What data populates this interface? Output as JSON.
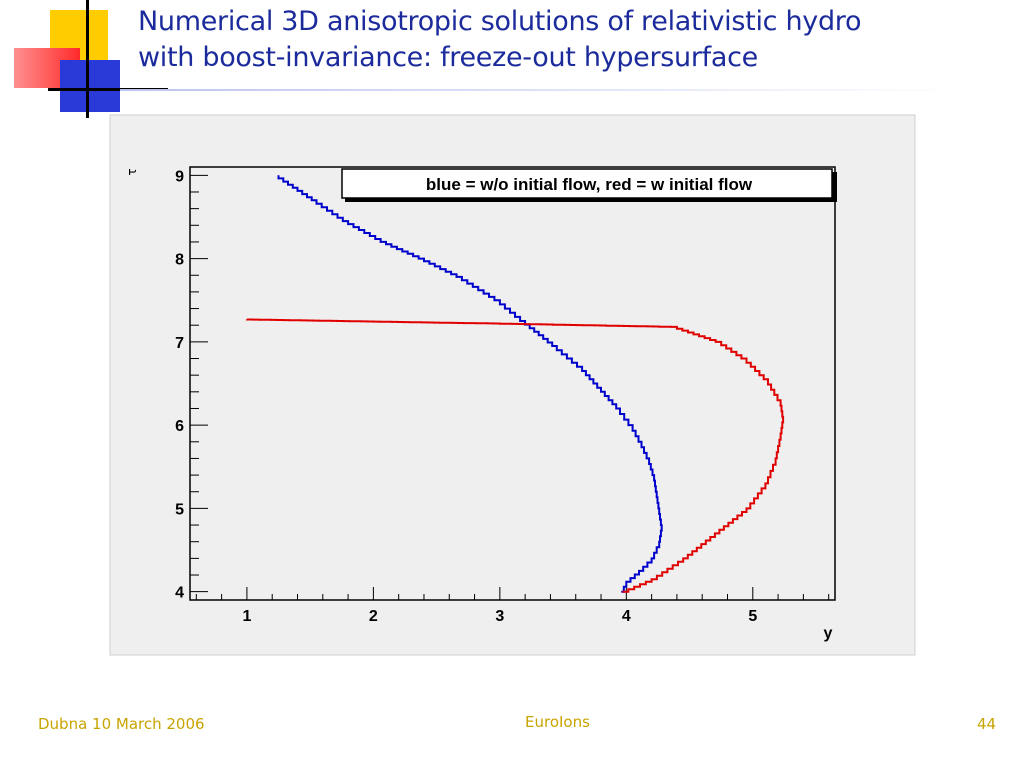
{
  "slide": {
    "title_line1": "Numerical 3D anisotropic solutions of relativistic hydro",
    "title_line2": "with boost-invariance: freeze-out hypersurface",
    "footer_left": "Dubna 10 March 2006",
    "footer_center": "EuroIons",
    "page_number": "44"
  },
  "colors": {
    "title": "#1c2b9c",
    "footer": "#c8a400",
    "blue_curve": "#0000cc",
    "red_curve": "#e00000",
    "plot_bg": "#efefef"
  },
  "chart_data": {
    "type": "line",
    "title": "blue = w/o initial flow, red = w initial flow",
    "xlabel": "y",
    "ylabel": "τ",
    "xlim": [
      0.55,
      5.65
    ],
    "ylim": [
      3.9,
      9.1
    ],
    "x_ticks": [
      1,
      2,
      3,
      4,
      5
    ],
    "y_ticks": [
      4,
      5,
      6,
      7,
      8,
      9
    ],
    "grid": false,
    "series": [
      {
        "color": "blue",
        "points": [
          [
            3.96,
            4.0
          ],
          [
            4.0,
            4.12
          ],
          [
            4.1,
            4.25
          ],
          [
            4.2,
            4.4
          ],
          [
            4.26,
            4.6
          ],
          [
            4.28,
            4.8
          ],
          [
            4.26,
            5.0
          ],
          [
            4.24,
            5.2
          ],
          [
            4.22,
            5.4
          ],
          [
            4.18,
            5.6
          ],
          [
            4.12,
            5.8
          ],
          [
            4.05,
            6.0
          ],
          [
            3.95,
            6.2
          ],
          [
            3.8,
            6.45
          ],
          [
            3.65,
            6.7
          ],
          [
            3.45,
            6.95
          ],
          [
            3.2,
            7.25
          ],
          [
            3.0,
            7.5
          ],
          [
            2.7,
            7.78
          ],
          [
            2.4,
            8.0
          ],
          [
            2.1,
            8.2
          ],
          [
            1.8,
            8.45
          ],
          [
            1.55,
            8.7
          ],
          [
            1.25,
            9.0
          ]
        ]
      },
      {
        "color": "red",
        "points": [
          [
            3.97,
            4.0
          ],
          [
            4.2,
            4.15
          ],
          [
            4.45,
            4.4
          ],
          [
            4.7,
            4.7
          ],
          [
            4.95,
            5.0
          ],
          [
            5.1,
            5.3
          ],
          [
            5.18,
            5.6
          ],
          [
            5.22,
            5.9
          ],
          [
            5.24,
            6.1
          ],
          [
            5.22,
            6.3
          ],
          [
            5.12,
            6.55
          ],
          [
            4.95,
            6.8
          ],
          [
            4.75,
            7.0
          ],
          [
            4.4,
            7.18
          ],
          [
            3.0,
            7.22
          ],
          [
            1.0,
            7.27
          ]
        ]
      }
    ]
  }
}
